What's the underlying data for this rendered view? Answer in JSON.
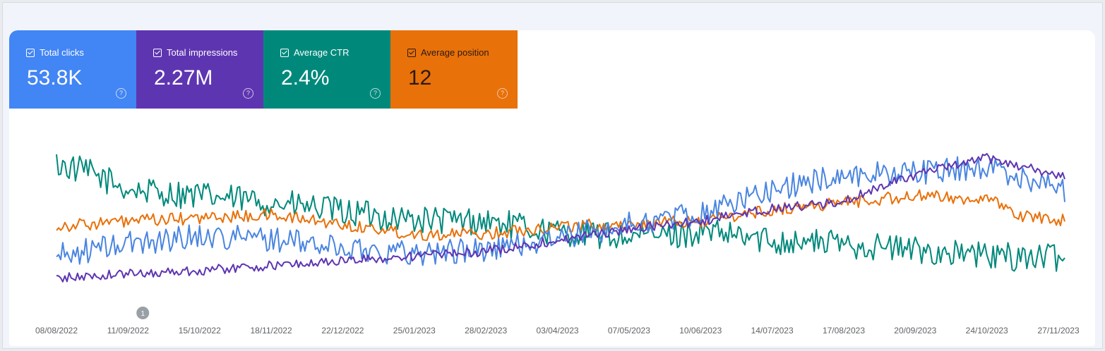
{
  "metrics": [
    {
      "key": "clicks",
      "label": "Total clicks",
      "value": "53.8K",
      "color": "#4285f4",
      "checked": true
    },
    {
      "key": "impressions",
      "label": "Total impressions",
      "value": "2.27M",
      "color": "#5e35b1",
      "checked": true
    },
    {
      "key": "ctr",
      "label": "Average CTR",
      "value": "2.4%",
      "color": "#00897b",
      "checked": true
    },
    {
      "key": "position",
      "label": "Average position",
      "value": "12",
      "color": "#e8710a",
      "checked": true
    }
  ],
  "annotation": {
    "label": "1",
    "date": "2022-09-18"
  },
  "chart_data": {
    "type": "line",
    "x_start": "2022-08-08",
    "x_end": "2023-11-30",
    "x_ticks": [
      "08/08/2022",
      "11/09/2022",
      "15/10/2022",
      "18/11/2022",
      "22/12/2022",
      "25/01/2023",
      "28/02/2023",
      "03/04/2023",
      "07/05/2023",
      "10/06/2023",
      "14/07/2023",
      "17/08/2023",
      "20/09/2023",
      "24/10/2023",
      "27/11/2023"
    ],
    "grid": false,
    "y_axis_visible": false,
    "series": [
      {
        "color": "#00897b",
        "noise": 0.09,
        "x": [
          "2022-08-08",
          "2022-08-25",
          "2022-09-11",
          "2022-10-15",
          "2022-11-18",
          "2022-12-22",
          "2023-01-25",
          "2023-02-28",
          "2023-04-03",
          "2023-05-07",
          "2023-06-10",
          "2023-07-14",
          "2023-08-17",
          "2023-09-20",
          "2023-10-24",
          "2023-11-30"
        ],
        "y": [
          0.8,
          0.74,
          0.64,
          0.6,
          0.56,
          0.5,
          0.45,
          0.44,
          0.37,
          0.34,
          0.37,
          0.32,
          0.3,
          0.26,
          0.22,
          0.21
        ]
      },
      {
        "color": "#e8710a",
        "noise": 0.04,
        "x": [
          "2022-08-08",
          "2022-09-11",
          "2022-10-15",
          "2022-11-18",
          "2022-12-22",
          "2023-01-25",
          "2023-02-28",
          "2023-04-03",
          "2023-05-07",
          "2023-06-10",
          "2023-07-14",
          "2023-08-17",
          "2023-09-20",
          "2023-10-24",
          "2023-11-10",
          "2023-11-30"
        ],
        "y": [
          0.41,
          0.44,
          0.46,
          0.48,
          0.42,
          0.36,
          0.36,
          0.41,
          0.42,
          0.44,
          0.51,
          0.56,
          0.6,
          0.58,
          0.47,
          0.45
        ]
      },
      {
        "color": "#4a85e0",
        "noise": 0.08,
        "x": [
          "2022-08-08",
          "2022-09-11",
          "2022-10-15",
          "2022-11-18",
          "2022-12-22",
          "2023-01-25",
          "2023-02-28",
          "2023-04-03",
          "2023-05-07",
          "2023-06-10",
          "2023-07-14",
          "2023-08-17",
          "2023-09-20",
          "2023-10-24",
          "2023-11-30"
        ],
        "y": [
          0.22,
          0.3,
          0.35,
          0.33,
          0.27,
          0.24,
          0.26,
          0.33,
          0.42,
          0.49,
          0.64,
          0.73,
          0.75,
          0.78,
          0.64
        ]
      },
      {
        "color": "#5e35b1",
        "noise": 0.03,
        "x": [
          "2022-08-08",
          "2022-09-11",
          "2022-10-15",
          "2022-11-18",
          "2022-12-22",
          "2023-01-25",
          "2023-02-28",
          "2023-04-03",
          "2023-05-07",
          "2023-06-10",
          "2023-07-14",
          "2023-08-17",
          "2023-09-10",
          "2023-10-24",
          "2023-11-30"
        ],
        "y": [
          0.08,
          0.11,
          0.13,
          0.16,
          0.19,
          0.22,
          0.25,
          0.32,
          0.39,
          0.44,
          0.52,
          0.56,
          0.7,
          0.84,
          0.72
        ]
      }
    ]
  }
}
